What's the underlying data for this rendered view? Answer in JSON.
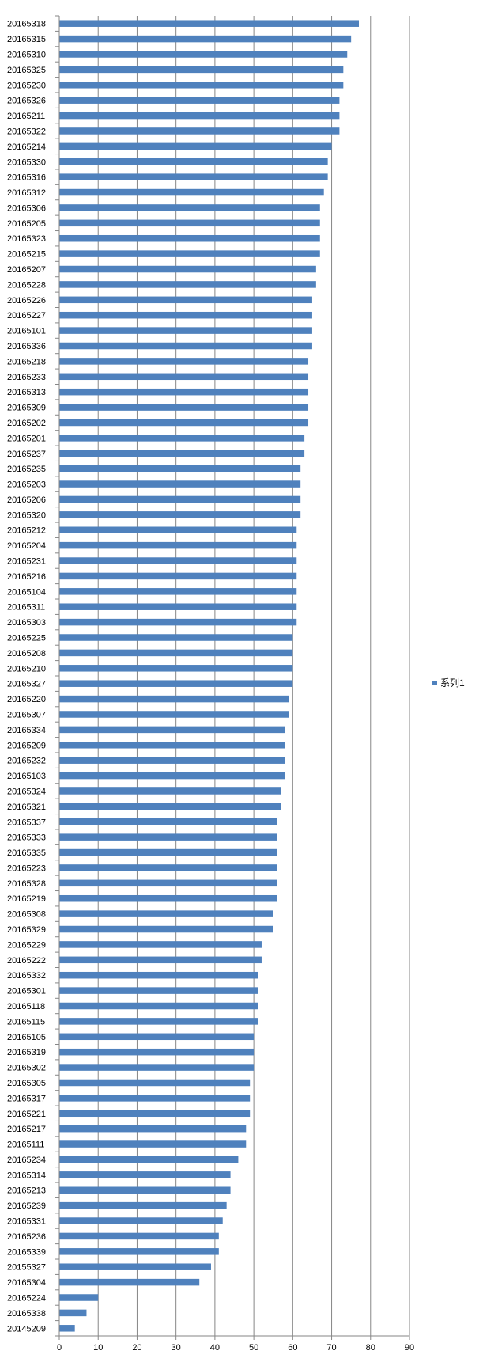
{
  "chart_data": {
    "type": "bar",
    "orientation": "horizontal",
    "categories": [
      "20165318",
      "20165315",
      "20165310",
      "20165325",
      "20165230",
      "20165326",
      "20165211",
      "20165322",
      "20165214",
      "20165330",
      "20165316",
      "20165312",
      "20165306",
      "20165205",
      "20165323",
      "20165215",
      "20165207",
      "20165228",
      "20165226",
      "20165227",
      "20165101",
      "20165336",
      "20165218",
      "20165233",
      "20165313",
      "20165309",
      "20165202",
      "20165201",
      "20165237",
      "20165235",
      "20165203",
      "20165206",
      "20165320",
      "20165212",
      "20165204",
      "20165231",
      "20165216",
      "20165104",
      "20165311",
      "20165303",
      "20165225",
      "20165208",
      "20165210",
      "20165327",
      "20165220",
      "20165307",
      "20165334",
      "20165209",
      "20165232",
      "20165103",
      "20165324",
      "20165321",
      "20165337",
      "20165333",
      "20165335",
      "20165223",
      "20165328",
      "20165219",
      "20165308",
      "20165329",
      "20165229",
      "20165222",
      "20165332",
      "20165301",
      "20165118",
      "20165115",
      "20165105",
      "20165319",
      "20165302",
      "20165305",
      "20165317",
      "20165221",
      "20165217",
      "20165111",
      "20165234",
      "20165314",
      "20165213",
      "20165239",
      "20165331",
      "20165236",
      "20165339",
      "20155327",
      "20165304",
      "20165224",
      "20165338",
      "20145209"
    ],
    "series": [
      {
        "name": "系列1",
        "color": "#4F81BD",
        "values": [
          77,
          75,
          74,
          73,
          73,
          72,
          72,
          72,
          70,
          69,
          69,
          68,
          67,
          67,
          67,
          67,
          66,
          66,
          65,
          65,
          65,
          65,
          64,
          64,
          64,
          64,
          64,
          63,
          63,
          62,
          62,
          62,
          62,
          61,
          61,
          61,
          61,
          61,
          61,
          61,
          60,
          60,
          60,
          60,
          59,
          59,
          58,
          58,
          58,
          58,
          57,
          57,
          56,
          56,
          56,
          56,
          56,
          56,
          55,
          55,
          52,
          52,
          51,
          51,
          51,
          51,
          50,
          50,
          50,
          49,
          49,
          49,
          48,
          48,
          46,
          44,
          44,
          43,
          42,
          41,
          41,
          39,
          36,
          10,
          7,
          4
        ]
      }
    ],
    "xlim": [
      0,
      90
    ],
    "xticks": [
      "0",
      "10",
      "20",
      "30",
      "40",
      "50",
      "60",
      "70",
      "80",
      "90"
    ],
    "grid": true,
    "legend_position": "right"
  }
}
